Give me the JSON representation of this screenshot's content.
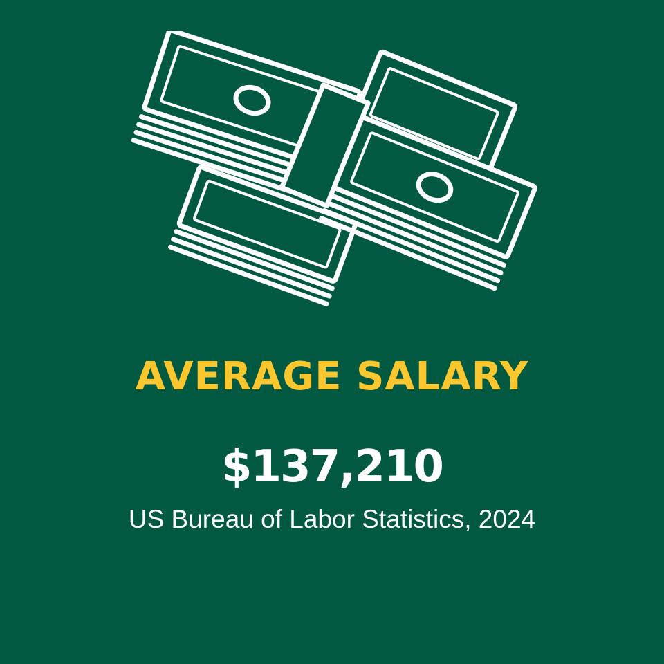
{
  "colors": {
    "background": "#005940",
    "accent": "#fcc72e",
    "text": "#ffffff"
  },
  "illustration": {
    "icon": "money-stacks-icon"
  },
  "heading": "AVERAGE SALARY",
  "value": "$137,210",
  "source": "US Bureau of Labor Statistics, 2024"
}
